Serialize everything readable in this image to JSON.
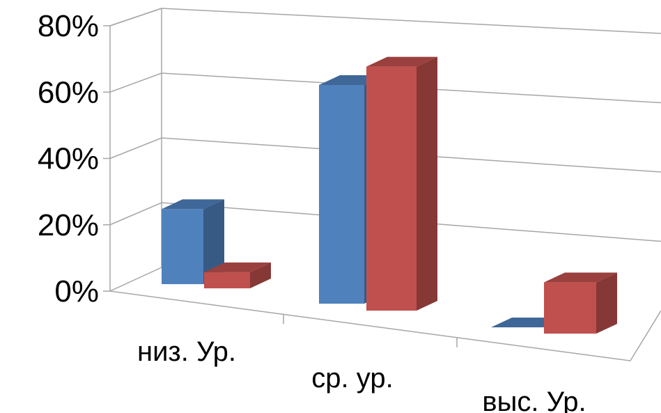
{
  "chart_data": {
    "type": "bar",
    "style": "3d-clustered-column",
    "categories": [
      "низ. Ур.",
      "ср. ур.",
      "выс.  Ур."
    ],
    "series": [
      {
        "values": [
          28,
          69,
          0
        ],
        "color": "#4F81BD"
      },
      {
        "values": [
          6,
          77,
          16
        ],
        "color": "#C0504D"
      }
    ],
    "y_ticks": [
      "0%",
      "20%",
      "40%",
      "60%",
      "80%"
    ],
    "ylim": [
      0,
      80
    ],
    "y_unit": "%",
    "grid": true,
    "legend": "none"
  }
}
